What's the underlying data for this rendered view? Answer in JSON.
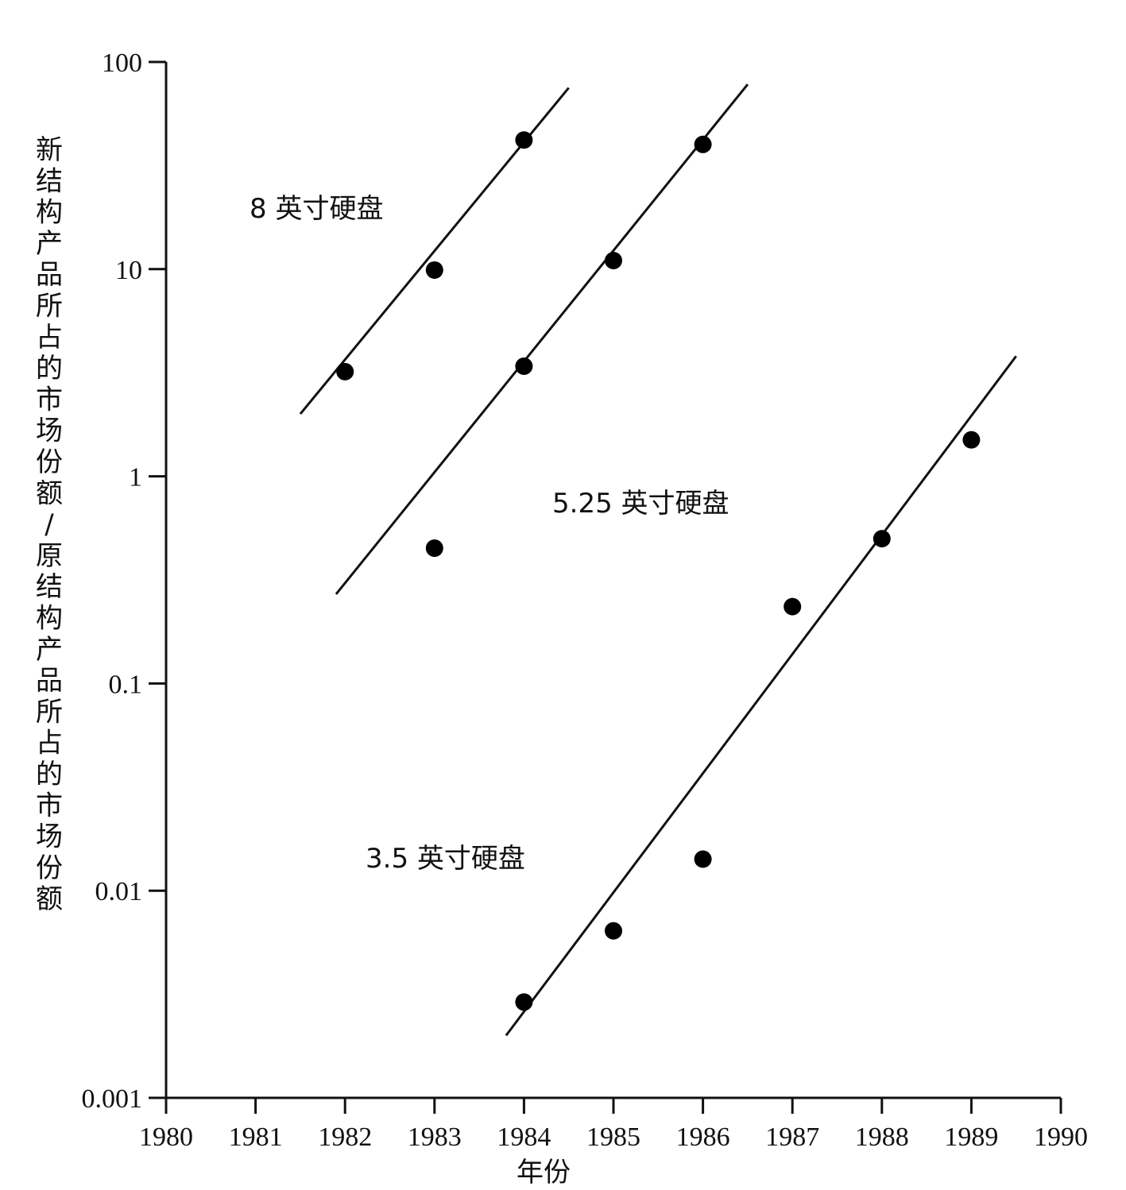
{
  "chart_data": {
    "type": "scatter",
    "title": "",
    "xlabel": "年份",
    "ylabel": "新结构产品所占的市场份额/原结构产品所占的市场份额",
    "yscale": "log",
    "xlim": [
      1980,
      1990
    ],
    "ylim": [
      0.001,
      100
    ],
    "x_ticks": [
      "1980",
      "1981",
      "1982",
      "1983",
      "1984",
      "1985",
      "1986",
      "1987",
      "1988",
      "1989",
      "1990"
    ],
    "y_ticks": [
      "0.001",
      "0.01",
      "0.1",
      "1",
      "10",
      "100"
    ],
    "grid": false,
    "series": [
      {
        "name": "8 英寸硬盘",
        "points": [
          [
            1982,
            3.2
          ],
          [
            1983,
            9.9
          ],
          [
            1984,
            42
          ]
        ],
        "trend": [
          [
            1981.5,
            2.0
          ],
          [
            1984.5,
            75
          ]
        ]
      },
      {
        "name": "5.25 英寸硬盘",
        "points": [
          [
            1983,
            0.45
          ],
          [
            1984,
            3.4
          ],
          [
            1985,
            11
          ],
          [
            1986,
            40
          ]
        ],
        "trend": [
          [
            1981.9,
            0.27
          ],
          [
            1986.5,
            78
          ]
        ]
      },
      {
        "name": "3.5 英寸硬盘",
        "points": [
          [
            1984,
            0.0029
          ],
          [
            1985,
            0.0064
          ],
          [
            1986,
            0.0142
          ],
          [
            1987,
            0.235
          ],
          [
            1988,
            0.5
          ],
          [
            1989,
            1.5
          ]
        ],
        "trend": [
          [
            1983.8,
            0.002
          ],
          [
            1989.5,
            3.8
          ]
        ]
      }
    ],
    "series_label_positions": [
      "upper-left",
      "middle",
      "lower-left"
    ]
  }
}
